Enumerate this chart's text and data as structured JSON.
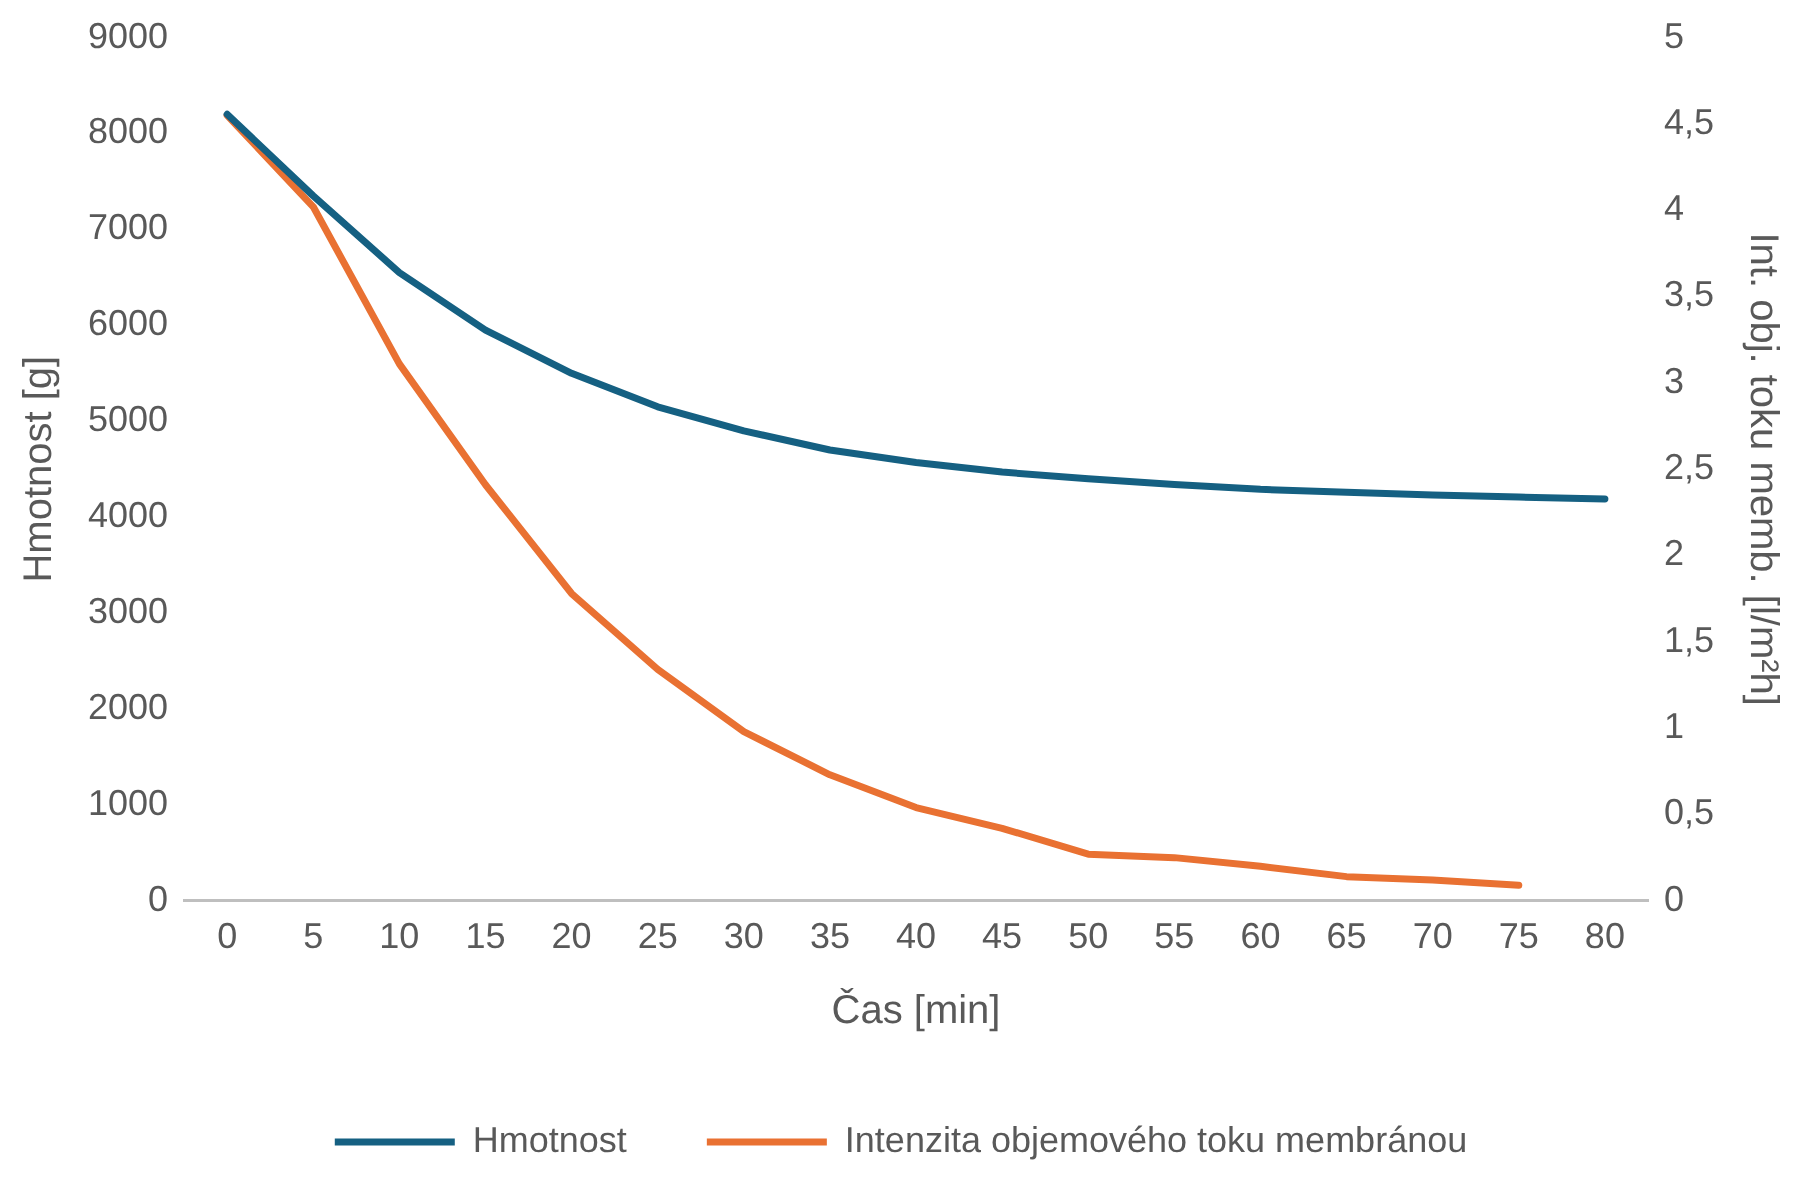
{
  "chart_data": {
    "type": "line",
    "xlabel": "Čas [min]",
    "ylabel": "Hmotnost [g]",
    "y2label": "Int. obj. toku memb. [l/m²h]",
    "categories": [
      "0",
      "5",
      "10",
      "15",
      "20",
      "25",
      "30",
      "35",
      "40",
      "45",
      "50",
      "55",
      "60",
      "65",
      "70",
      "75",
      "80"
    ],
    "series": [
      {
        "name": "Hmotnost",
        "color": "#156082",
        "values": [
          8200,
          7350,
          6550,
          5950,
          5500,
          5150,
          4900,
          4700,
          4570,
          4470,
          4400,
          4340,
          4290,
          4260,
          4230,
          4210,
          4190
        ]
      },
      {
        "name": "Intenzita objemového toku membránou",
        "color": "#e97132",
        "axis": "y2",
        "values": [
          4.55,
          4.02,
          3.11,
          2.41,
          1.78,
          1.34,
          0.98,
          0.73,
          0.54,
          0.42,
          0.27,
          0.25,
          0.2,
          0.14,
          0.12,
          0.09,
          null
        ]
      }
    ],
    "ylim": [
      0,
      9000
    ],
    "yticks": [
      0,
      1000,
      2000,
      3000,
      4000,
      5000,
      6000,
      7000,
      8000,
      9000
    ],
    "y2lim": [
      0,
      5
    ],
    "y2ticks": [
      0,
      {
        "value": 0.5,
        "label": "0,5"
      },
      1,
      {
        "value": 1.5,
        "label": "1,5"
      },
      2,
      {
        "value": 2.5,
        "label": "2,5"
      },
      3,
      {
        "value": 3.5,
        "label": "3,5"
      },
      4,
      {
        "value": 4.5,
        "label": "4,5"
      },
      5
    ],
    "grid": false,
    "legend": "bottom",
    "marker": "none",
    "line_style": "solid"
  }
}
